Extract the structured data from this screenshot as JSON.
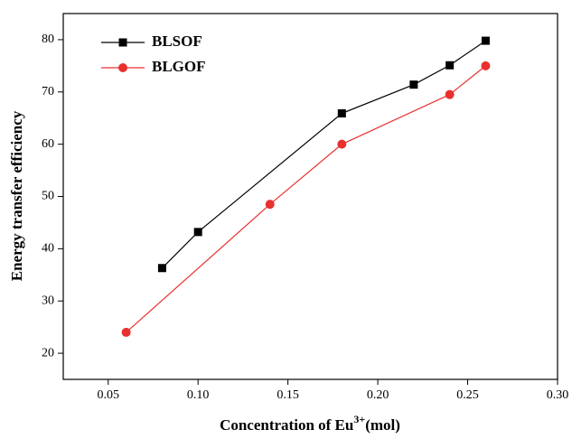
{
  "chart_data": {
    "type": "line",
    "xlabel": [
      "Concentration of Eu",
      "3+",
      "(mol)"
    ],
    "ylabel": "Energy transfer efficiency",
    "series": [
      {
        "name": "BLSOF",
        "color": "#000000",
        "marker": "square",
        "x": [
          0.08,
          0.1,
          0.18,
          0.22,
          0.24,
          0.26
        ],
        "values": [
          36.3,
          43.2,
          65.9,
          71.4,
          75.1,
          79.8
        ]
      },
      {
        "name": "BLGOF",
        "color": "#e8312f",
        "marker": "circle",
        "x": [
          0.06,
          0.14,
          0.18,
          0.24,
          0.26
        ],
        "values": [
          24,
          48.5,
          60,
          69.5,
          75
        ]
      }
    ],
    "xlim": [
      0.025,
      0.3
    ],
    "ylim": [
      15,
      85
    ],
    "xticks": [
      0.05,
      {
        "value": 0.1,
        "label": "0.10"
      },
      0.15,
      {
        "value": 0.2,
        "label": "0.20"
      },
      0.25,
      {
        "value": 0.3,
        "label": "0.30"
      }
    ],
    "yticks": [
      20,
      30,
      40,
      50,
      60,
      70,
      80
    ],
    "legend": "upper-left"
  }
}
